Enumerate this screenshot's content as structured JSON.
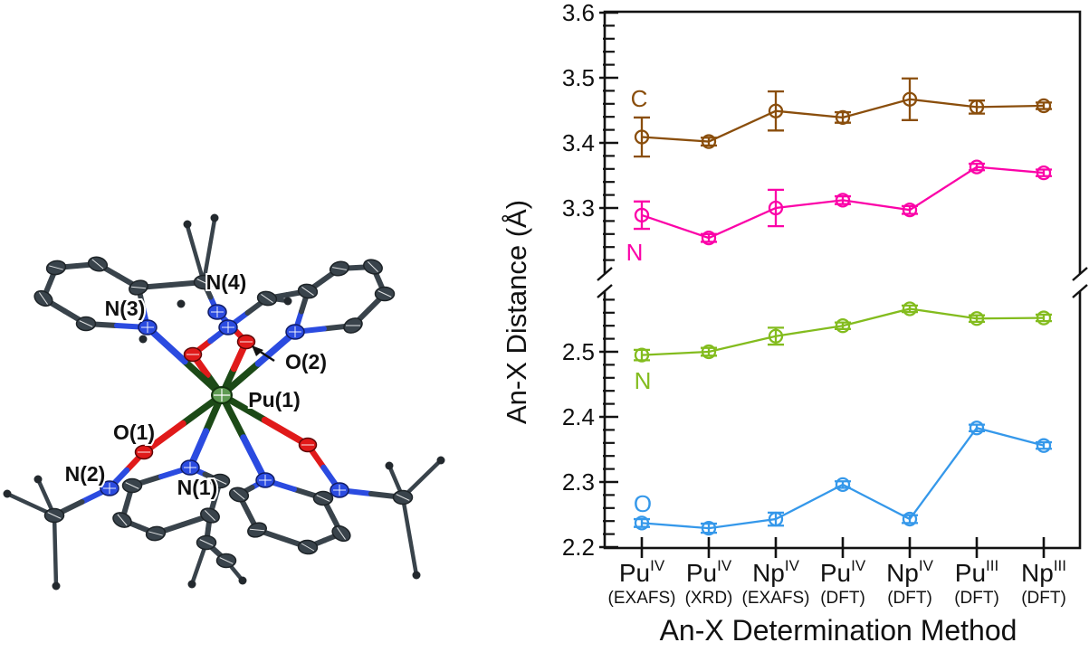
{
  "figure": {
    "molecule": {
      "description": "ORTEP-style crystal structure of Pu(IV) complex",
      "labels": {
        "n4": "N(4)",
        "n3": "N(3)",
        "o2": "O(2)",
        "pu1": "Pu(1)",
        "o1": "O(1)",
        "n2": "N(2)",
        "n1": "N(1)"
      },
      "colors": {
        "carbon": "#39434B",
        "nitrogen": "#2B4BE0",
        "oxygen": "#E01A1A",
        "plutonium_fill": "#5E9A52",
        "metal_bond": "#1C4A17"
      }
    },
    "chart_data": {
      "type": "line",
      "title": "",
      "xlabel": "An-X Determination Method",
      "ylabel": "An-X Distance (Å)",
      "legend_position": "inline-left",
      "grid": false,
      "y_axis": {
        "unit": "Å",
        "axis_break": true,
        "minor_step": 0.02,
        "top_segment": {
          "min": 3.2,
          "max": 3.6,
          "major_ticks": [
            3.6,
            3.5,
            3.4,
            3.3
          ]
        },
        "bottom_segment": {
          "min": 2.2,
          "max": 2.59,
          "major_ticks": [
            2.5,
            2.4,
            2.3,
            2.2
          ]
        }
      },
      "categories": [
        {
          "base": "Pu",
          "sup": "IV",
          "method": "(EXAFS)"
        },
        {
          "base": "Pu",
          "sup": "IV",
          "method": "(XRD)"
        },
        {
          "base": "Np",
          "sup": "IV",
          "method": "(EXAFS)"
        },
        {
          "base": "Pu",
          "sup": "IV",
          "method": "(DFT)"
        },
        {
          "base": "Np",
          "sup": "IV",
          "method": "(DFT)"
        },
        {
          "base": "Pu",
          "sup": "III",
          "method": "(DFT)"
        },
        {
          "base": "Np",
          "sup": "III",
          "method": "(DFT)"
        }
      ],
      "series": [
        {
          "label": "C",
          "color": "#8A4E0C",
          "values": [
            3.409,
            3.402,
            3.449,
            3.439,
            3.467,
            3.455,
            3.457
          ],
          "errors": [
            0.03,
            0.006,
            0.03,
            0.008,
            0.032,
            0.01,
            0.005
          ]
        },
        {
          "label": "N",
          "color": "#FB02A8",
          "values": [
            3.289,
            3.254,
            3.3,
            3.312,
            3.297,
            3.363,
            3.354
          ],
          "errors": [
            0.021,
            0.006,
            0.028,
            0.006,
            0.006,
            0.005,
            0.005
          ]
        },
        {
          "label": "N",
          "color": "#83BC1E",
          "values": [
            2.495,
            2.5,
            2.524,
            2.54,
            2.566,
            2.551,
            2.552
          ],
          "errors": [
            0.008,
            0.006,
            0.013,
            0.005,
            0.005,
            0.005,
            0.005
          ]
        },
        {
          "label": "O",
          "color": "#3598EA",
          "values": [
            2.237,
            2.229,
            2.243,
            2.296,
            2.243,
            2.383,
            2.356
          ],
          "errors": [
            0.006,
            0.007,
            0.01,
            0.005,
            0.006,
            0.005,
            0.005
          ]
        }
      ]
    }
  }
}
